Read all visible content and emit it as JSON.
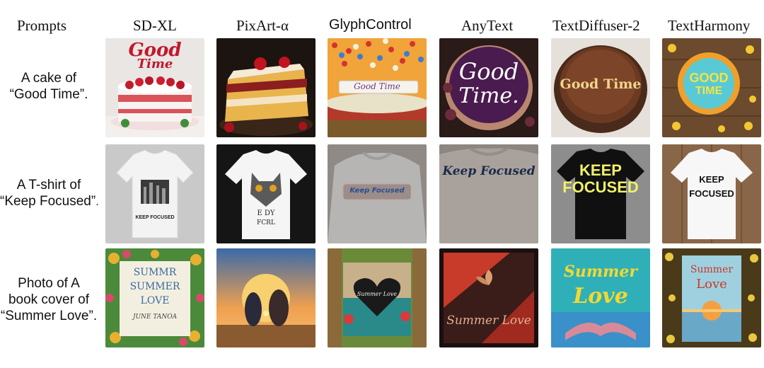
{
  "columns": [
    {
      "label": "Prompts"
    },
    {
      "label": "SD-XL"
    },
    {
      "label": "PixArt-α"
    },
    {
      "label": "GlyphControl"
    },
    {
      "label": "AnyText"
    },
    {
      "label": "TextDiffuser-2"
    },
    {
      "label": "TextHarmony"
    }
  ],
  "rows": [
    {
      "prompt_line1": "A cake of",
      "prompt_line2": "“Good Time”.",
      "cells": [
        {
          "text1": "Good",
          "text2": "Time"
        },
        {
          "text1": "",
          "text2": ""
        },
        {
          "text1": "Good Time",
          "text2": ""
        },
        {
          "text1": "Good",
          "text2": "Time."
        },
        {
          "text1": "Good Time",
          "text2": ""
        },
        {
          "text1": "GOOD",
          "text2": "TIME"
        }
      ]
    },
    {
      "prompt_line1": "A T-shirt of",
      "prompt_line2": "“Keep Focused”.",
      "cells": [
        {
          "text1": "KEEP FOCUSED",
          "text2": ""
        },
        {
          "text1": "E DY",
          "text2": "FCRL"
        },
        {
          "text1": "Keep Focused",
          "text2": ""
        },
        {
          "text1": "Keep Focused",
          "text2": ""
        },
        {
          "text1": "KEEP",
          "text2": "FOCUSED"
        },
        {
          "text1": "KEEP",
          "text2": "FOCUSED"
        }
      ]
    },
    {
      "prompt_line1": "Photo of A",
      "prompt_line2": "book cover of",
      "prompt_line3": "“Summer Love”.",
      "cells": [
        {
          "text1": "SUMMR",
          "text2": "SUMMER",
          "text3": "LOVE",
          "text4": "JUNE TANOA"
        },
        {
          "text1": "",
          "text2": ""
        },
        {
          "text1": "Summer Love",
          "text2": ""
        },
        {
          "text1": "Summer Love",
          "text2": ""
        },
        {
          "text1": "Summer",
          "text2": "Love"
        },
        {
          "text1": "Summer",
          "text2": "Love"
        }
      ]
    }
  ]
}
